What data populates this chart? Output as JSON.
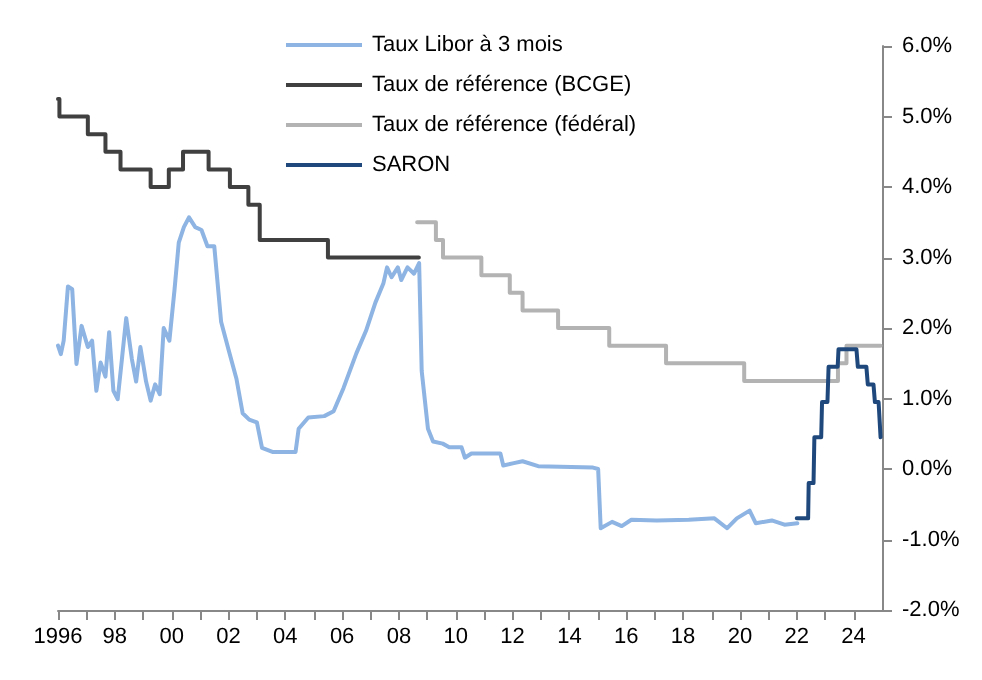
{
  "chart_data": {
    "type": "line",
    "xlim": [
      1996,
      2025
    ],
    "xticks": [
      {
        "value": 1996,
        "label": "1996"
      },
      {
        "value": 1997,
        "label": null
      },
      {
        "value": 1998,
        "label": "98"
      },
      {
        "value": 1999,
        "label": null
      },
      {
        "value": 2000,
        "label": "00"
      },
      {
        "value": 2001,
        "label": null
      },
      {
        "value": 2002,
        "label": "02"
      },
      {
        "value": 2003,
        "label": null
      },
      {
        "value": 2004,
        "label": "04"
      },
      {
        "value": 2005,
        "label": null
      },
      {
        "value": 2006,
        "label": "06"
      },
      {
        "value": 2007,
        "label": null
      },
      {
        "value": 2008,
        "label": "08"
      },
      {
        "value": 2009,
        "label": null
      },
      {
        "value": 2010,
        "label": "10"
      },
      {
        "value": 2011,
        "label": null
      },
      {
        "value": 2012,
        "label": "12"
      },
      {
        "value": 2013,
        "label": null
      },
      {
        "value": 2014,
        "label": "14"
      },
      {
        "value": 2015,
        "label": null
      },
      {
        "value": 2016,
        "label": "16"
      },
      {
        "value": 2017,
        "label": null
      },
      {
        "value": 2018,
        "label": "18"
      },
      {
        "value": 2019,
        "label": null
      },
      {
        "value": 2020,
        "label": "20"
      },
      {
        "value": 2021,
        "label": null
      },
      {
        "value": 2022,
        "label": "22"
      },
      {
        "value": 2023,
        "label": null
      },
      {
        "value": 2024,
        "label": "24"
      }
    ],
    "ylim": [
      -2,
      6
    ],
    "yticks": [
      {
        "value": -2,
        "label": "-2.0%"
      },
      {
        "value": -1,
        "label": "-1.0%"
      },
      {
        "value": 0,
        "label": "0.0%"
      },
      {
        "value": 1,
        "label": "1.0%"
      },
      {
        "value": 2,
        "label": "2.0%"
      },
      {
        "value": 3,
        "label": "3.0%"
      },
      {
        "value": 4,
        "label": "4.0%"
      },
      {
        "value": 5,
        "label": "5.0%"
      },
      {
        "value": 6,
        "label": "6.0%"
      }
    ],
    "grid": false,
    "legend": "top",
    "marker": "none",
    "line_style": "solid",
    "series": [
      {
        "name": "Taux Libor à 3 mois",
        "color": "#8db4e2",
        "x": [
          1996.0,
          1996.1,
          1996.2,
          1996.35,
          1996.5,
          1996.65,
          1996.83,
          1997.05,
          1997.2,
          1997.35,
          1997.5,
          1997.67,
          1997.8,
          1997.95,
          1998.1,
          1998.25,
          1998.4,
          1998.6,
          1998.75,
          1998.9,
          1999.1,
          1999.26,
          1999.42,
          1999.58,
          1999.72,
          1999.92,
          2000.1,
          2000.25,
          2000.43,
          2000.61,
          2000.83,
          2001.05,
          2001.26,
          2001.5,
          2001.74,
          2002.01,
          2002.28,
          2002.5,
          2002.73,
          2003.0,
          2003.18,
          2003.57,
          2004.36,
          2004.47,
          2004.81,
          2005.37,
          2005.7,
          2006.05,
          2006.5,
          2006.84,
          2007.17,
          2007.45,
          2007.58,
          2007.74,
          2007.96,
          2008.08,
          2008.3,
          2008.53,
          2008.71,
          2008.8,
          2009.02,
          2009.2,
          2009.54,
          2009.77,
          2010.2,
          2010.32,
          2010.55,
          2011.57,
          2011.67,
          2012.0,
          2012.35,
          2012.9,
          2014.83,
          2015.01,
          2015.1,
          2015.5,
          2015.84,
          2016.18,
          2017.07,
          2018.2,
          2019.1,
          2019.55,
          2019.89,
          2020.34,
          2020.56,
          2021.12,
          2021.57,
          2022.02
        ],
        "values": [
          1.75,
          1.63,
          1.82,
          2.59,
          2.55,
          1.49,
          2.03,
          1.73,
          1.82,
          1.11,
          1.51,
          1.31,
          1.94,
          1.11,
          0.99,
          1.56,
          2.14,
          1.56,
          1.24,
          1.73,
          1.24,
          0.97,
          1.2,
          1.06,
          2.0,
          1.82,
          2.54,
          3.21,
          3.43,
          3.57,
          3.43,
          3.39,
          3.16,
          3.16,
          2.09,
          1.68,
          1.28,
          0.79,
          0.7,
          0.66,
          0.3,
          0.24,
          0.24,
          0.57,
          0.73,
          0.75,
          0.82,
          1.15,
          1.64,
          1.96,
          2.36,
          2.63,
          2.86,
          2.72,
          2.86,
          2.68,
          2.86,
          2.77,
          2.92,
          1.39,
          0.57,
          0.39,
          0.36,
          0.31,
          0.31,
          0.16,
          0.22,
          0.22,
          0.05,
          0.08,
          0.11,
          0.04,
          0.02,
          0.0,
          -0.84,
          -0.75,
          -0.81,
          -0.72,
          -0.73,
          -0.72,
          -0.7,
          -0.84,
          -0.7,
          -0.59,
          -0.77,
          -0.73,
          -0.79,
          -0.77
        ]
      },
      {
        "name": "Taux de référence (BCGE)",
        "color": "#404040",
        "type": "step",
        "x": [
          1996.0,
          1996.05,
          1997.05,
          1997.67,
          1998.2,
          1999.26,
          1999.9,
          2000.4,
          2001.3,
          2002.05,
          2002.7,
          2003.1,
          2005.5,
          2008.7
        ],
        "values": [
          5.25,
          5.0,
          4.75,
          4.5,
          4.25,
          4.0,
          4.25,
          4.5,
          4.25,
          4.0,
          3.75,
          3.25,
          3.0,
          3.0
        ]
      },
      {
        "name": "Taux de référence (fédéral)",
        "color": "#b3b3b3",
        "type": "step",
        "x": [
          2008.64,
          2009.3,
          2009.55,
          2010.9,
          2011.9,
          2012.35,
          2013.6,
          2015.4,
          2017.4,
          2020.15,
          2023.45,
          2023.75,
          2024.95
        ],
        "values": [
          3.5,
          3.25,
          3.0,
          2.75,
          2.5,
          2.25,
          2.0,
          1.75,
          1.5,
          1.25,
          1.5,
          1.75,
          1.75
        ]
      },
      {
        "name": "SARON",
        "color": "#1f497d",
        "x": [
          2022.0,
          2022.4,
          2022.42,
          2022.59,
          2022.62,
          2022.86,
          2022.89,
          2023.08,
          2023.12,
          2023.44,
          2023.47,
          2024.1,
          2024.15,
          2024.45,
          2024.5,
          2024.7,
          2024.75,
          2024.88,
          2024.95
        ],
        "values": [
          -0.7,
          -0.7,
          -0.2,
          -0.2,
          0.45,
          0.45,
          0.95,
          0.95,
          1.45,
          1.45,
          1.7,
          1.7,
          1.45,
          1.45,
          1.2,
          1.2,
          0.95,
          0.95,
          0.45
        ]
      }
    ]
  }
}
